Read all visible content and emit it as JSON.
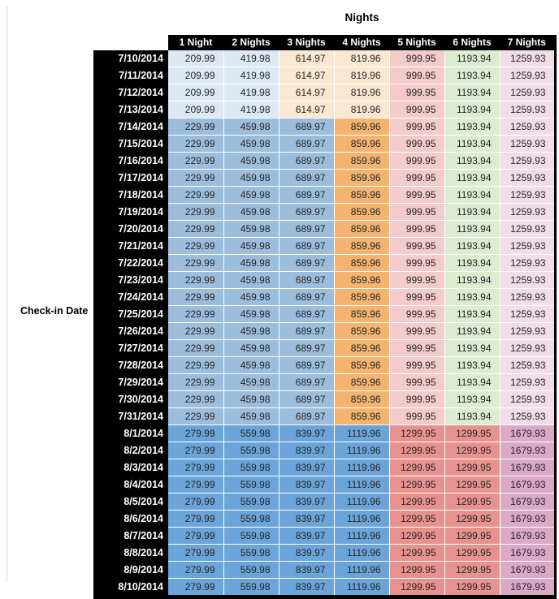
{
  "colors": {
    "header_bg": "#000000",
    "header_text": "#ffffff",
    "date_col_bg": "#000000",
    "date_col_text": "#ffffff",
    "cell_text": "#262626",
    "page_edge_line": "#d4d4d4",
    "light_blue": "#dce8f4",
    "mid_blue": "#9dbddd",
    "dark_blue": "#6aa4d8",
    "light_orange": "#fbe8d3",
    "mid_orange": "#f4b46f",
    "light_red": "#f2cbca",
    "salmon_red": "#e89290",
    "light_green": "#ddebd1",
    "light_pink": "#f1dde7",
    "mauve": "#d9a9c6"
  },
  "band_colors": {
    "A": [
      "light_blue",
      "light_blue",
      "light_orange",
      "light_orange",
      "light_red",
      "light_green",
      "light_pink"
    ],
    "B": [
      "mid_blue",
      "mid_blue",
      "mid_blue",
      "mid_orange",
      "light_red",
      "light_green",
      "light_pink"
    ],
    "C": [
      "dark_blue",
      "dark_blue",
      "dark_blue",
      "dark_blue",
      "salmon_red",
      "salmon_red",
      "mauve"
    ]
  },
  "chart_data": {
    "type": "table",
    "title": "Nights",
    "row_label": "Check-in Date",
    "columns": [
      "1 Night",
      "2 Nights",
      "3 Nights",
      "4 Nights",
      "5 Nights",
      "6 Nights",
      "7 Nights"
    ],
    "rows": [
      {
        "date": "7/10/2014",
        "band": "A",
        "values": [
          "209.99",
          "419.98",
          "614.97",
          "819.96",
          "999.95",
          "1193.94",
          "1259.93"
        ]
      },
      {
        "date": "7/11/2014",
        "band": "A",
        "values": [
          "209.99",
          "419.98",
          "614.97",
          "819.96",
          "999.95",
          "1193.94",
          "1259.93"
        ]
      },
      {
        "date": "7/12/2014",
        "band": "A",
        "values": [
          "209.99",
          "419.98",
          "614.97",
          "819.96",
          "999.95",
          "1193.94",
          "1259.93"
        ]
      },
      {
        "date": "7/13/2014",
        "band": "A",
        "values": [
          "209.99",
          "419.98",
          "614.97",
          "819.96",
          "999.95",
          "1193.94",
          "1259.93"
        ]
      },
      {
        "date": "7/14/2014",
        "band": "B",
        "values": [
          "229.99",
          "459.98",
          "689.97",
          "859.96",
          "999.95",
          "1193.94",
          "1259.93"
        ]
      },
      {
        "date": "7/15/2014",
        "band": "B",
        "values": [
          "229.99",
          "459.98",
          "689.97",
          "859.96",
          "999.95",
          "1193.94",
          "1259.93"
        ]
      },
      {
        "date": "7/16/2014",
        "band": "B",
        "values": [
          "229.99",
          "459.98",
          "689.97",
          "859.96",
          "999.95",
          "1193.94",
          "1259.93"
        ]
      },
      {
        "date": "7/17/2014",
        "band": "B",
        "values": [
          "229.99",
          "459.98",
          "689.97",
          "859.96",
          "999.95",
          "1193.94",
          "1259.93"
        ]
      },
      {
        "date": "7/18/2014",
        "band": "B",
        "values": [
          "229.99",
          "459.98",
          "689.97",
          "859.96",
          "999.95",
          "1193.94",
          "1259.93"
        ]
      },
      {
        "date": "7/19/2014",
        "band": "B",
        "values": [
          "229.99",
          "459.98",
          "689.97",
          "859.96",
          "999.95",
          "1193.94",
          "1259.93"
        ]
      },
      {
        "date": "7/20/2014",
        "band": "B",
        "values": [
          "229.99",
          "459.98",
          "689.97",
          "859.96",
          "999.95",
          "1193.94",
          "1259.93"
        ]
      },
      {
        "date": "7/21/2014",
        "band": "B",
        "values": [
          "229.99",
          "459.98",
          "689.97",
          "859.96",
          "999.95",
          "1193.94",
          "1259.93"
        ]
      },
      {
        "date": "7/22/2014",
        "band": "B",
        "values": [
          "229.99",
          "459.98",
          "689.97",
          "859.96",
          "999.95",
          "1193.94",
          "1259.93"
        ]
      },
      {
        "date": "7/23/2014",
        "band": "B",
        "values": [
          "229.99",
          "459.98",
          "689.97",
          "859.96",
          "999.95",
          "1193.94",
          "1259.93"
        ]
      },
      {
        "date": "7/24/2014",
        "band": "B",
        "values": [
          "229.99",
          "459.98",
          "689.97",
          "859.96",
          "999.95",
          "1193.94",
          "1259.93"
        ]
      },
      {
        "date": "7/25/2014",
        "band": "B",
        "values": [
          "229.99",
          "459.98",
          "689.97",
          "859.96",
          "999.95",
          "1193.94",
          "1259.93"
        ]
      },
      {
        "date": "7/26/2014",
        "band": "B",
        "values": [
          "229.99",
          "459.98",
          "689.97",
          "859.96",
          "999.95",
          "1193.94",
          "1259.93"
        ]
      },
      {
        "date": "7/27/2014",
        "band": "B",
        "values": [
          "229.99",
          "459.98",
          "689.97",
          "859.96",
          "999.95",
          "1193.94",
          "1259.93"
        ]
      },
      {
        "date": "7/28/2014",
        "band": "B",
        "values": [
          "229.99",
          "459.98",
          "689.97",
          "859.96",
          "999.95",
          "1193.94",
          "1259.93"
        ]
      },
      {
        "date": "7/29/2014",
        "band": "B",
        "values": [
          "229.99",
          "459.98",
          "689.97",
          "859.96",
          "999.95",
          "1193.94",
          "1259.93"
        ]
      },
      {
        "date": "7/30/2014",
        "band": "B",
        "values": [
          "229.99",
          "459.98",
          "689.97",
          "859.96",
          "999.95",
          "1193.94",
          "1259.93"
        ]
      },
      {
        "date": "7/31/2014",
        "band": "B",
        "values": [
          "229.99",
          "459.98",
          "689.97",
          "859.96",
          "999.95",
          "1193.94",
          "1259.93"
        ]
      },
      {
        "date": "8/1/2014",
        "band": "C",
        "values": [
          "279.99",
          "559.98",
          "839.97",
          "1119.96",
          "1299.95",
          "1299.95",
          "1679.93"
        ]
      },
      {
        "date": "8/2/2014",
        "band": "C",
        "values": [
          "279.99",
          "559.98",
          "839.97",
          "1119.96",
          "1299.95",
          "1299.95",
          "1679.93"
        ]
      },
      {
        "date": "8/3/2014",
        "band": "C",
        "values": [
          "279.99",
          "559.98",
          "839.97",
          "1119.96",
          "1299.95",
          "1299.95",
          "1679.93"
        ]
      },
      {
        "date": "8/4/2014",
        "band": "C",
        "values": [
          "279.99",
          "559.98",
          "839.97",
          "1119.96",
          "1299.95",
          "1299.95",
          "1679.93"
        ]
      },
      {
        "date": "8/5/2014",
        "band": "C",
        "values": [
          "279.99",
          "559.98",
          "839.97",
          "1119.96",
          "1299.95",
          "1299.95",
          "1679.93"
        ]
      },
      {
        "date": "8/6/2014",
        "band": "C",
        "values": [
          "279.99",
          "559.98",
          "839.97",
          "1119.96",
          "1299.95",
          "1299.95",
          "1679.93"
        ]
      },
      {
        "date": "8/7/2014",
        "band": "C",
        "values": [
          "279.99",
          "559.98",
          "839.97",
          "1119.96",
          "1299.95",
          "1299.95",
          "1679.93"
        ]
      },
      {
        "date": "8/8/2014",
        "band": "C",
        "values": [
          "279.99",
          "559.98",
          "839.97",
          "1119.96",
          "1299.95",
          "1299.95",
          "1679.93"
        ]
      },
      {
        "date": "8/9/2014",
        "band": "C",
        "values": [
          "279.99",
          "559.98",
          "839.97",
          "1119.96",
          "1299.95",
          "1299.95",
          "1679.93"
        ]
      },
      {
        "date": "8/10/2014",
        "band": "C",
        "values": [
          "279.99",
          "559.98",
          "839.97",
          "1119.96",
          "1299.95",
          "1299.95",
          "1679.93"
        ]
      }
    ]
  }
}
